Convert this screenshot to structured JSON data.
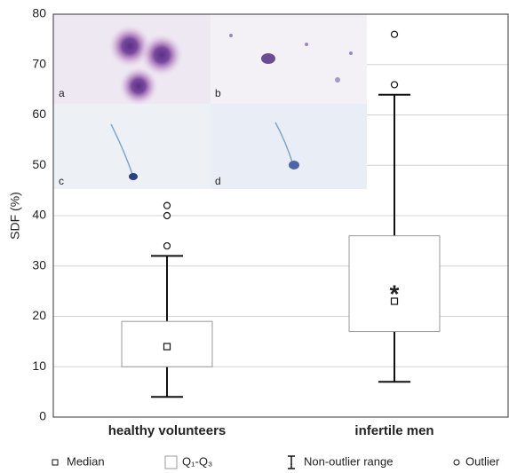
{
  "chart_data": {
    "type": "box",
    "y_label": "SDF (%)",
    "categories": [
      "healthy volunteers",
      "infertile men"
    ],
    "stats": {
      "whisker_low": [
        4,
        7
      ],
      "q1": [
        10,
        17
      ],
      "median": [
        14,
        23
      ],
      "q3": [
        19,
        36
      ],
      "whisker_high": [
        32,
        64
      ]
    },
    "outliers": [
      [
        34,
        40,
        42
      ],
      [
        66,
        76
      ]
    ],
    "annotations": [
      {
        "text": "*",
        "category": 1,
        "y": 25
      }
    ],
    "panel_labels": [
      "a",
      "b",
      "c",
      "d"
    ],
    "ylim": [
      0,
      80
    ],
    "yticks": [
      0,
      10,
      20,
      30,
      40,
      50,
      60,
      70,
      80
    ],
    "grid": true,
    "legend": [
      "Median",
      "Q₁-Q₃",
      "Non-outlier range",
      "Outlier"
    ],
    "legend_position": "bottom"
  }
}
